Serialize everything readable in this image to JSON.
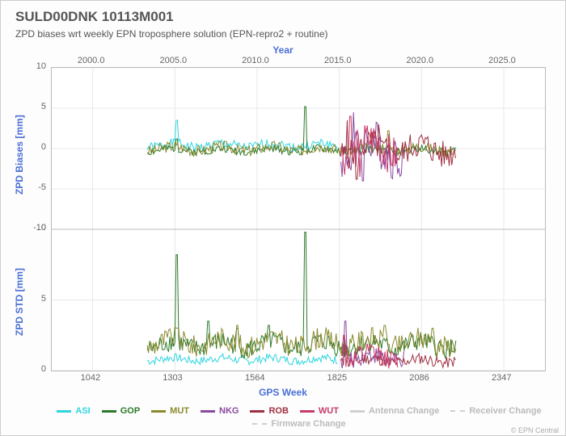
{
  "title": "SULD00DNK 10113M001",
  "subtitle": "ZPD biases wrt weekly EPN troposphere solution (EPN-repro2 + routine)",
  "credit": "© EPN Central",
  "top_axis": {
    "label": "Year",
    "ticks": [
      2000.0,
      2005.0,
      2010.0,
      2015.0,
      2020.0,
      2025.0
    ],
    "min": 1997.5,
    "max": 2027.5
  },
  "bottom_axis": {
    "label": "GPS Week",
    "ticks": [
      1042,
      1303,
      1564,
      1825,
      2086,
      2347
    ],
    "min": 912,
    "max": 2478
  },
  "panel_biases": {
    "label": "ZPD Biases [mm]",
    "ylim": [
      -10,
      10
    ],
    "yticks": [
      -10,
      -5,
      0,
      5,
      10
    ]
  },
  "panel_std": {
    "label": "ZPD STD [mm]",
    "ylim": [
      0,
      10
    ],
    "yticks": [
      0,
      5,
      10
    ]
  },
  "colors": {
    "background": "#ffffff",
    "border": "#bbbbbb",
    "grid": "#e8e8e8",
    "text": "#555555",
    "axis_label": "#4a6fd6",
    "tick": "#666666"
  },
  "series": [
    {
      "id": "ASI",
      "label": "ASI",
      "color": "#30d5e0",
      "dashed": false
    },
    {
      "id": "GOP",
      "label": "GOP",
      "color": "#2a7a2a",
      "dashed": false
    },
    {
      "id": "MUT",
      "label": "MUT",
      "color": "#8a8a2e",
      "dashed": false
    },
    {
      "id": "NKG",
      "label": "NKG",
      "color": "#8a4aa0",
      "dashed": false
    },
    {
      "id": "ROB",
      "label": "ROB",
      "color": "#a03040",
      "dashed": false
    },
    {
      "id": "WUT",
      "label": "WUT",
      "color": "#c83a6a",
      "dashed": false
    },
    {
      "id": "ANT",
      "label": "Antenna Change",
      "color": "#d0d0d0",
      "dashed": false
    },
    {
      "id": "REC",
      "label": "Receiver Change",
      "color": "#d0d0d0",
      "dashed": true
    },
    {
      "id": "FW",
      "label": "Firmware Change",
      "color": "#d0d0d0",
      "dashed": true
    }
  ],
  "line_width": 1.0,
  "font_family": "Arial, sans-serif",
  "fontsize_title": 17,
  "fontsize_subtitle": 12,
  "fontsize_axis_label": 12,
  "fontsize_tick": 11,
  "fontsize_legend": 11,
  "biases_data": {
    "ASI": {
      "xrange": [
        1215,
        1820
      ],
      "base": 0.4,
      "amp": 0.6,
      "spikes": [
        [
          1310,
          3.5
        ]
      ]
    },
    "GOP": {
      "xrange": [
        1215,
        2195
      ],
      "base": -0.2,
      "amp": 0.5,
      "spikes": [
        [
          1718,
          5.2
        ],
        [
          1310,
          1.2
        ]
      ]
    },
    "MUT": {
      "xrange": [
        1215,
        2195
      ],
      "base": 0.0,
      "amp": 0.7,
      "spikes": [
        [
          1930,
          2.0
        ],
        [
          1980,
          2.2
        ]
      ]
    },
    "NKG": {
      "xrange": [
        1830,
        2030
      ],
      "base": 0.0,
      "amp": 2.8,
      "spikes": [
        [
          1870,
          4.5
        ],
        [
          1900,
          -4.0
        ]
      ]
    },
    "ROB": {
      "xrange": [
        1830,
        2195
      ],
      "base": -0.1,
      "amp": 1.8,
      "spikes": [
        [
          1850,
          3.5
        ],
        [
          1880,
          -3.8
        ],
        [
          1950,
          3.0
        ]
      ]
    },
    "WUT": {
      "xrange": [
        1830,
        2010
      ],
      "base": 0.1,
      "amp": 2.5,
      "spikes": [
        [
          1860,
          4.0
        ],
        [
          1890,
          -3.5
        ]
      ]
    }
  },
  "std_data": {
    "ASI": {
      "xrange": [
        1215,
        1820
      ],
      "base": 0.8,
      "amp": 0.3,
      "spikes": []
    },
    "GOP": {
      "xrange": [
        1215,
        2195
      ],
      "base": 1.8,
      "amp": 0.7,
      "spikes": [
        [
          1310,
          8.2
        ],
        [
          1718,
          9.8
        ],
        [
          1410,
          3.5
        ],
        [
          1500,
          3.0
        ],
        [
          1600,
          3.2
        ]
      ]
    },
    "MUT": {
      "xrange": [
        1215,
        2195
      ],
      "base": 2.0,
      "amp": 0.8,
      "spikes": [
        [
          1310,
          3.0
        ],
        [
          1500,
          3.2
        ],
        [
          1970,
          3.2
        ],
        [
          2120,
          3.0
        ]
      ]
    },
    "NKG": {
      "xrange": [
        1830,
        2030
      ],
      "base": 0.9,
      "amp": 0.6,
      "spikes": [
        [
          1845,
          3.5
        ]
      ]
    },
    "ROB": {
      "xrange": [
        1830,
        2195
      ],
      "base": 0.7,
      "amp": 0.4,
      "spikes": [
        [
          1845,
          1.8
        ]
      ]
    },
    "WUT": {
      "xrange": [
        1830,
        2010
      ],
      "base": 1.0,
      "amp": 0.7,
      "spikes": [
        [
          1840,
          2.5
        ]
      ]
    }
  }
}
